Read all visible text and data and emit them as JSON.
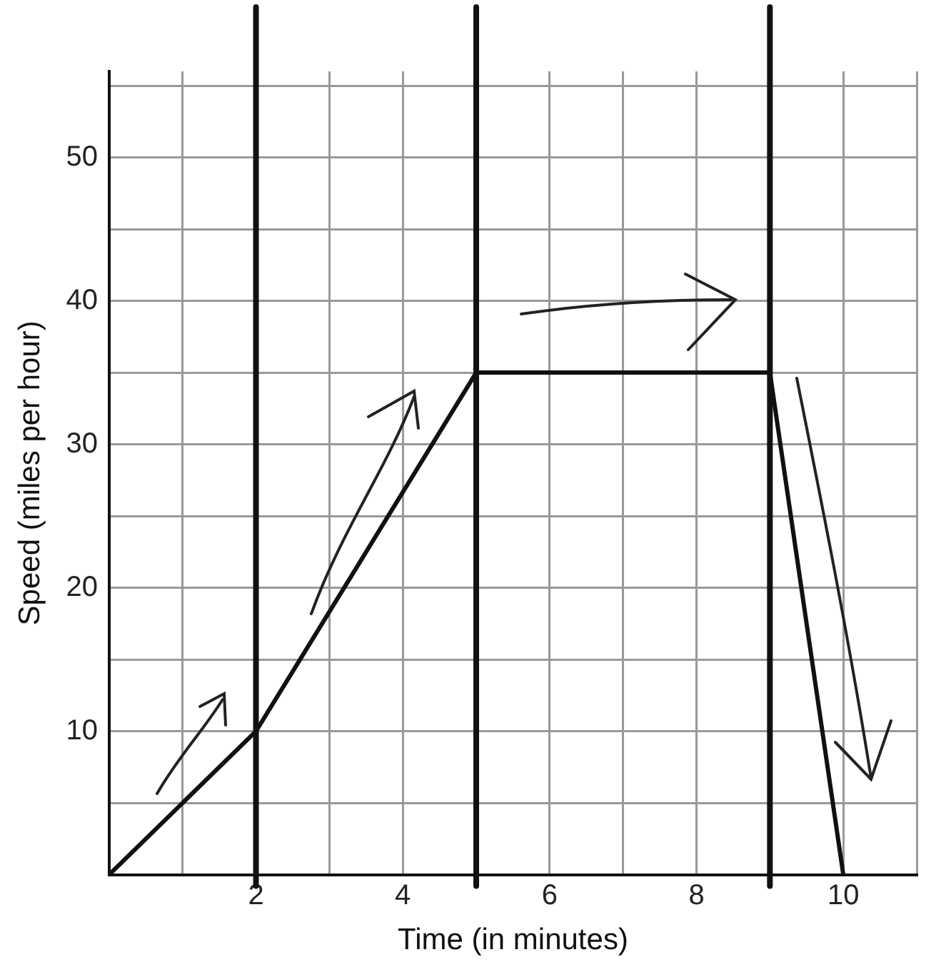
{
  "chart_data": {
    "type": "line",
    "xlabel": "Time (in minutes)",
    "ylabel": "Speed (miles per hour)",
    "x": [
      0,
      2,
      5,
      9,
      10
    ],
    "series": [
      {
        "color": "#111111",
        "values": [
          0,
          10,
          35,
          35,
          0
        ]
      }
    ],
    "xlim": [
      0,
      11
    ],
    "xticks": [
      {
        "value": 1,
        "label": null
      },
      2,
      {
        "value": 3,
        "label": null
      },
      4,
      6,
      {
        "value": 7,
        "label": null
      },
      8,
      10,
      {
        "value": 11,
        "label": null
      }
    ],
    "ylim": [
      0,
      56
    ],
    "yticks": [
      {
        "value": 5,
        "label": null
      },
      10,
      {
        "value": 15,
        "label": null
      },
      20,
      {
        "value": 25,
        "label": null
      },
      30,
      {
        "value": 35,
        "label": null
      },
      40,
      {
        "value": 45,
        "label": null
      },
      50,
      {
        "value": 55,
        "label": null
      }
    ],
    "ref_lines": [
      {
        "axis": "x",
        "value": 2,
        "color": "#111111"
      },
      {
        "axis": "x",
        "value": 5,
        "color": "#111111"
      },
      {
        "axis": "x",
        "value": 9,
        "color": "#111111"
      }
    ],
    "grid": true,
    "legend": false,
    "marker": "none",
    "line_style": "solid"
  }
}
